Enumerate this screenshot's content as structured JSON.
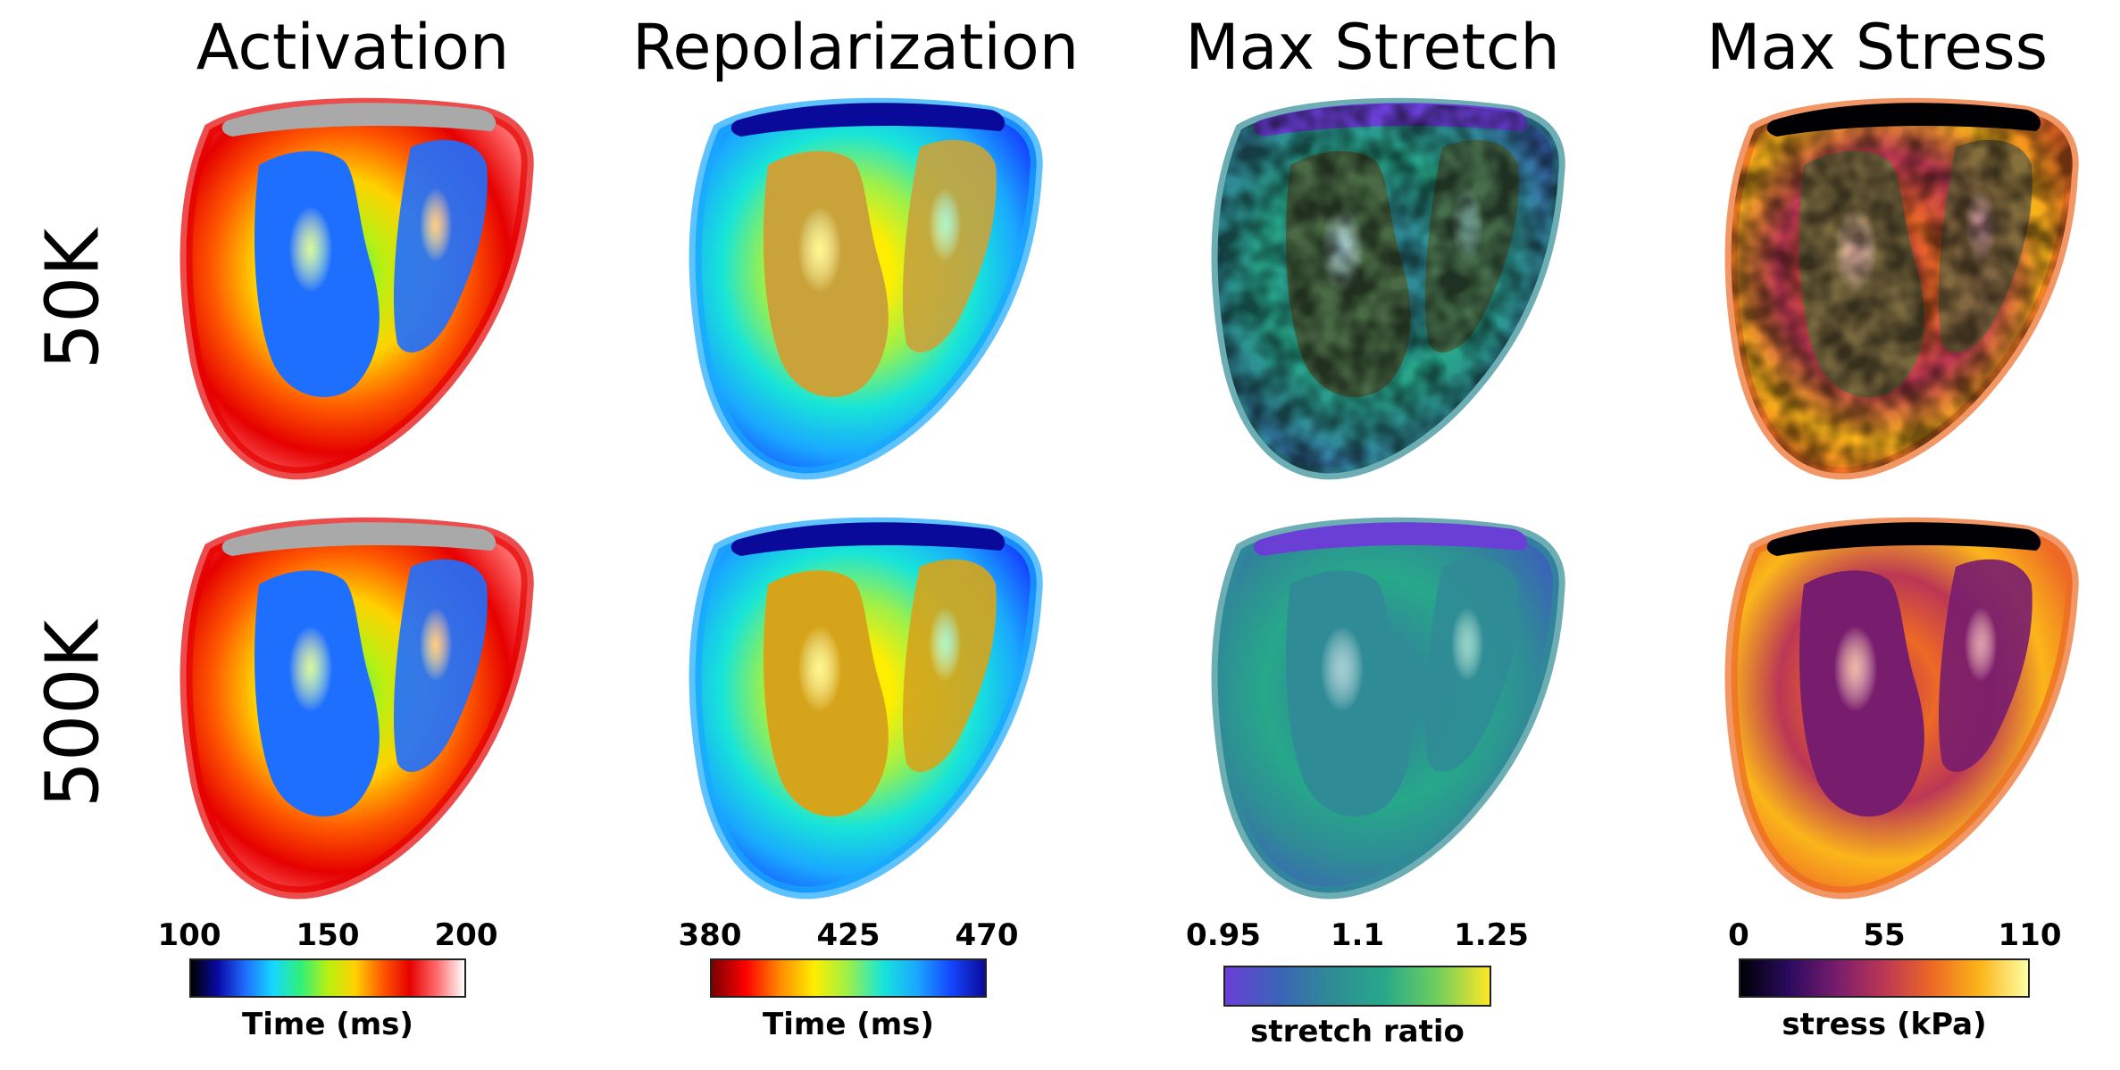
{
  "columns": [
    {
      "title": "Activation",
      "cmap": "activation",
      "colorbar": {
        "ticks": [
          "100",
          "150",
          "200"
        ],
        "label": "Time (ms)"
      }
    },
    {
      "title": "Repolarization",
      "cmap": "repol",
      "colorbar": {
        "ticks": [
          "380",
          "425",
          "470"
        ],
        "label": "Time (ms)"
      }
    },
    {
      "title": "Max Stretch",
      "cmap": "viridis",
      "colorbar": {
        "ticks": [
          "0.95",
          "1.1",
          "1.25"
        ],
        "label": "stretch  ratio"
      }
    },
    {
      "title": "Max Stress",
      "cmap": "inferno",
      "colorbar": {
        "ticks": [
          "0",
          "55",
          "110"
        ],
        "label": "stress  (kPa)"
      }
    }
  ],
  "rows": [
    {
      "label": "50K"
    },
    {
      "label": "500K"
    }
  ],
  "colormaps": {
    "activation": [
      "#000000",
      "#0a0aa8",
      "#1f6fff",
      "#16d8ff",
      "#2ff07a",
      "#b7f012",
      "#ffd200",
      "#ff5a00",
      "#e60000",
      "#ff6d6d",
      "#ffffff"
    ],
    "repol": [
      "#7a0000",
      "#ff0000",
      "#ff8a00",
      "#ffee00",
      "#9cf04a",
      "#18e5d8",
      "#1aa8ff",
      "#1546ff",
      "#0a0a9a"
    ],
    "viridis": [
      "#6a3fd6",
      "#3b63b8",
      "#2f8b96",
      "#27a88a",
      "#6fce5e",
      "#fde725"
    ],
    "inferno": [
      "#000004",
      "#2a0a5e",
      "#781c6d",
      "#bc3754",
      "#ed6925",
      "#fbb61a",
      "#fcffa4"
    ]
  }
}
